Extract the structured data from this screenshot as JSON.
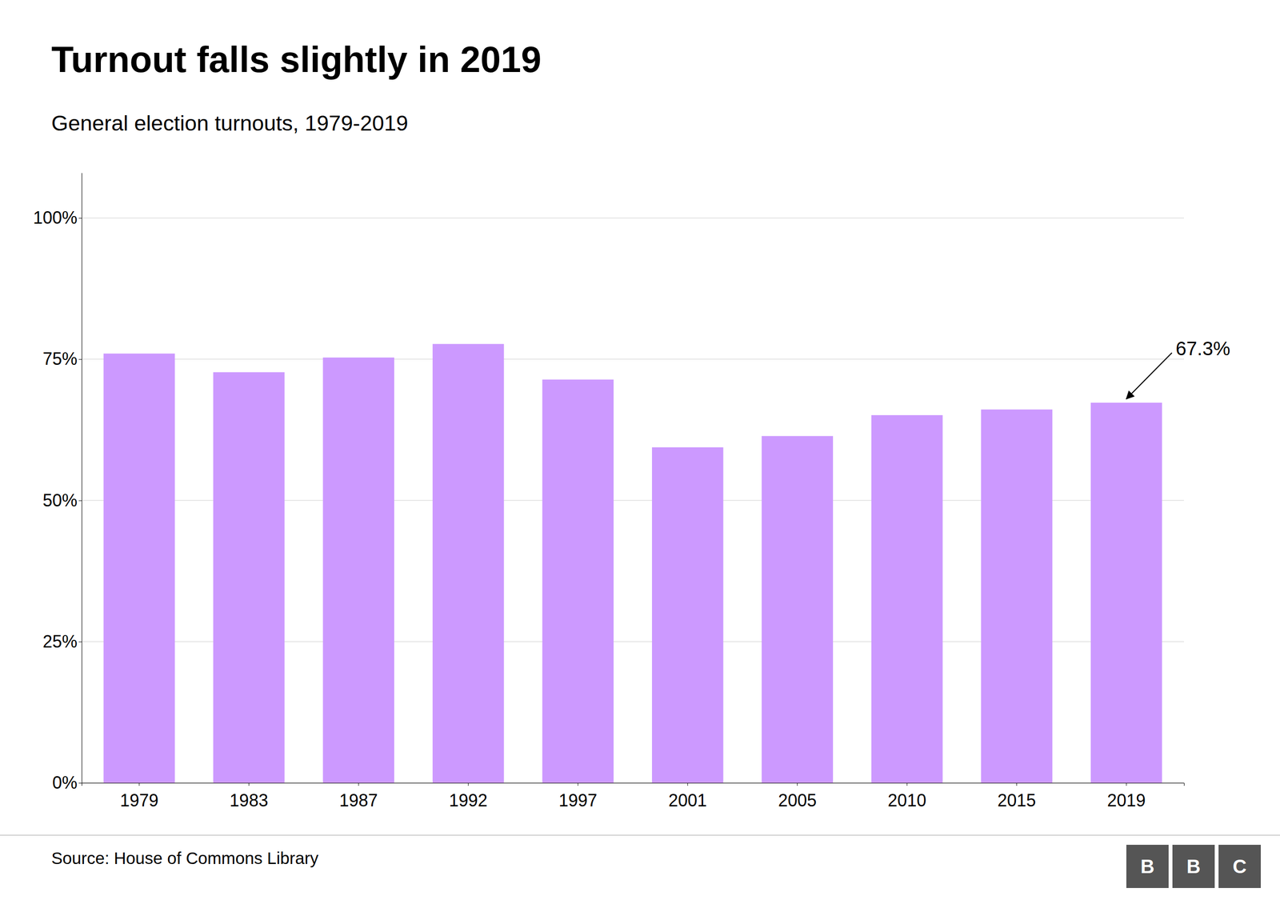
{
  "chart_data": {
    "type": "bar",
    "title": "Turnout falls slightly in 2019",
    "subtitle": "General election turnouts, 1979-2019",
    "source": "Source: House of Commons Library",
    "logo": [
      "B",
      "B",
      "C"
    ],
    "categories": [
      "1979",
      "1983",
      "1987",
      "1992",
      "1997",
      "2001",
      "2005",
      "2010",
      "2015",
      "2019"
    ],
    "values": [
      76.0,
      72.7,
      75.3,
      77.7,
      71.4,
      59.4,
      61.4,
      65.1,
      66.1,
      67.3
    ],
    "color": "#cc99ff",
    "ylim": [
      0,
      108
    ],
    "yticks": [
      {
        "value": 0,
        "label": "0%"
      },
      {
        "value": 25,
        "label": "25%"
      },
      {
        "value": 50,
        "label": "50%"
      },
      {
        "value": 75,
        "label": "75%"
      },
      {
        "value": 100,
        "label": "100%"
      }
    ],
    "grid": true,
    "annotations": [
      {
        "text": "67.3%",
        "x": "2019",
        "y": 67.3
      }
    ]
  }
}
